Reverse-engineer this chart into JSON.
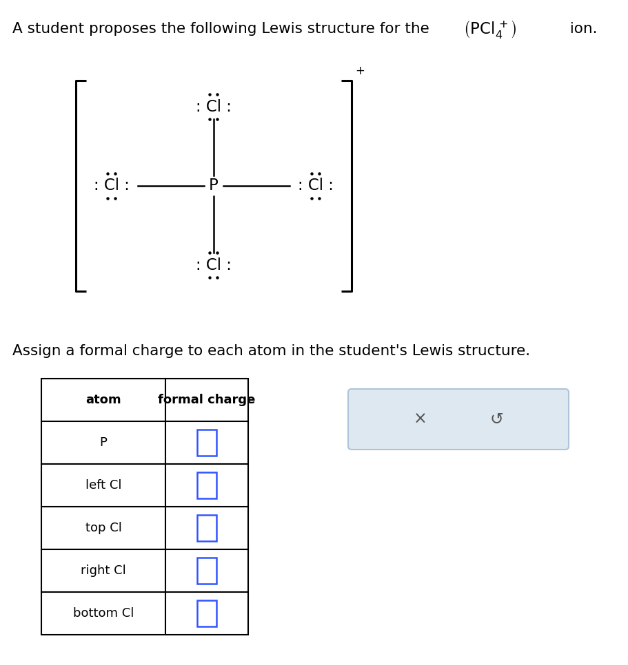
{
  "title_part1": "A student proposes the following Lewis structure for the",
  "ion_suffix": " ion.",
  "title_fontsize": 15.5,
  "background_color": "#ffffff",
  "assign_text": "Assign a formal charge to each atom in the student's Lewis structure.",
  "assign_fontsize": 15.5,
  "table_atoms": [
    "P",
    "left Cl",
    "top Cl",
    "right Cl",
    "bottom Cl"
  ],
  "table_header_col1": "atom",
  "table_header_col2": "formal charge",
  "input_box_color": "#3355ff",
  "x_symbol": "×",
  "undo_symbol": "↺",
  "dot_color": "#000000",
  "bond_color": "#000000",
  "bracket_color": "#000000"
}
